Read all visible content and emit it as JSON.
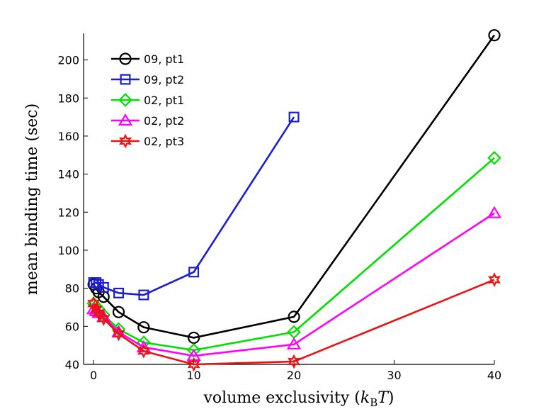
{
  "chart_data": {
    "type": "line",
    "title": "",
    "xlabel": "volume exclusivity",
    "xlabel_math": {
      "base": "k",
      "sub": "B",
      "var": "T"
    },
    "ylabel": "mean binding time (sec)",
    "xlim": [
      -1,
      40
    ],
    "ylim": [
      40,
      214
    ],
    "xticks": [
      0,
      10,
      20,
      30,
      40
    ],
    "yticks": [
      40,
      60,
      80,
      100,
      120,
      140,
      160,
      180,
      200
    ],
    "grid": false,
    "legend_position": "top-left",
    "series": [
      {
        "name": "09, pt1",
        "color": "#000000",
        "marker": "circle",
        "x": [
          0,
          0.25,
          0.5,
          1,
          2.5,
          5,
          10,
          20,
          40
        ],
        "y": [
          82,
          80,
          78,
          75.5,
          67.5,
          59.5,
          54,
          65,
          213
        ]
      },
      {
        "name": "09, pt2",
        "color": "#1c1cd0",
        "marker": "square",
        "x": [
          0,
          0.25,
          0.5,
          1,
          2.5,
          5,
          10,
          20
        ],
        "y": [
          83,
          83,
          82,
          80.5,
          77.5,
          76.5,
          88.5,
          170
        ]
      },
      {
        "name": "02, pt1",
        "color": "#00e000",
        "marker": "diamond",
        "x": [
          0,
          0.25,
          0.5,
          1,
          2.5,
          5,
          10,
          20,
          40
        ],
        "y": [
          72,
          70.5,
          69,
          66,
          58.5,
          51.5,
          47.5,
          57,
          148.5
        ]
      },
      {
        "name": "02, pt2",
        "color": "#ff00ff",
        "marker": "triangle",
        "x": [
          0,
          0.25,
          0.5,
          1,
          2.5,
          5,
          10,
          20,
          40
        ],
        "y": [
          69,
          68,
          67,
          65,
          57,
          49,
          44.5,
          50.5,
          119.5
        ]
      },
      {
        "name": "02, pt3",
        "color": "#ee1111",
        "marker": "star",
        "x": [
          0,
          0.25,
          0.5,
          1,
          2.5,
          5,
          10,
          20,
          40
        ],
        "y": [
          72,
          69,
          67,
          64,
          56,
          47,
          40,
          41.5,
          84.5
        ]
      }
    ]
  }
}
